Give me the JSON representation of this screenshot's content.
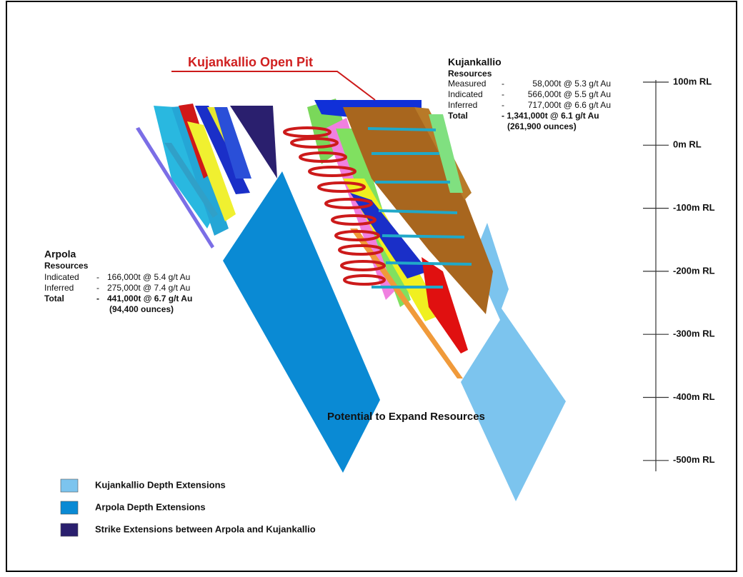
{
  "title": "Kujankallio Open Pit",
  "kujankallio": {
    "name": "Kujankallio",
    "heading": "Resources",
    "rows": [
      [
        "Measured",
        "-",
        "58,000t @ 5.3 g/t Au"
      ],
      [
        "Indicated",
        "-",
        "566,000t @ 5.5 g/t Au"
      ],
      [
        "Inferred",
        "-",
        "717,000t @ 6.6 g/t Au"
      ]
    ],
    "total": [
      "Total",
      "- 1,341,000t @ 6.1 g/t Au"
    ],
    "ounces": "(261,900 ounces)"
  },
  "arpola": {
    "name": "Arpola",
    "heading": "Resources",
    "rows": [
      [
        "Indicated",
        "-",
        "166,000t @ 5.4 g/t Au"
      ],
      [
        "Inferred",
        "-",
        "275,000t @ 7.4 g/t Au"
      ]
    ],
    "total": [
      "Total",
      "-",
      "441,000t @ 6.7 g/t Au"
    ],
    "ounces": "(94,400 ounces)"
  },
  "annotation": "Potential to Expand Resources",
  "scale": [
    "100m RL",
    "0m RL",
    "-100m RL",
    "-200m RL",
    "-300m RL",
    "-400m RL",
    "-500m RL"
  ],
  "legend": [
    {
      "label": "Kujankallio Depth Extensions",
      "color": "#7cc4ee"
    },
    {
      "label": "Arpola Depth Extensions",
      "color": "#0a8ad4"
    },
    {
      "label": "Strike Extensions between Arpola and Kujankallio",
      "color": "#2a1f6e"
    }
  ]
}
